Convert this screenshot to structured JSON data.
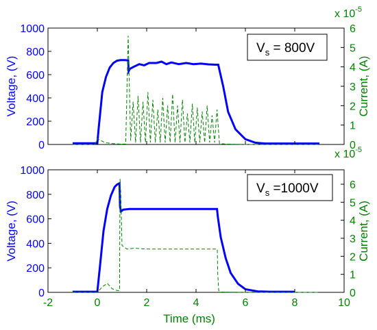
{
  "colors": {
    "voltage": "#0000ff",
    "current": "#008000",
    "axes": "#000000",
    "background": "#ffffff"
  },
  "chart_data": [
    {
      "type": "line",
      "label": "V_s = 800V",
      "label_parts": {
        "main": "V",
        "sub": "s",
        "rest": " = 800V"
      },
      "xlim": [
        -2,
        10
      ],
      "y_left": {
        "label": "Voltage, (V)",
        "lim": [
          0,
          1000
        ],
        "ticks": [
          "0",
          "200",
          "400",
          "600",
          "800",
          "1000"
        ]
      },
      "y_right": {
        "label": "Current, (A)",
        "lim": [
          0,
          6
        ],
        "ticks": [
          "0",
          "1",
          "2",
          "3",
          "4",
          "5",
          "6"
        ],
        "exponent_base": "x 10",
        "exponent": "-5"
      },
      "grid": false,
      "series": [
        {
          "axis": "left",
          "style": "solid",
          "color": "#0000ff",
          "x": [
            -1.0,
            -0.1,
            0.0,
            0.05,
            0.2,
            0.35,
            0.5,
            0.65,
            0.8,
            0.95,
            1.1,
            1.25,
            1.27,
            1.32,
            1.5,
            1.7,
            1.9,
            2.1,
            2.4,
            2.6,
            2.8,
            3.0,
            3.3,
            3.6,
            3.9,
            4.2,
            4.5,
            4.8,
            4.9,
            5.1,
            5.3,
            5.6,
            6.0,
            6.4,
            6.8,
            7.5,
            9.0
          ],
          "y": [
            10,
            10,
            10,
            130,
            450,
            580,
            660,
            700,
            720,
            725,
            725,
            722,
            630,
            650,
            670,
            690,
            680,
            700,
            700,
            712,
            690,
            705,
            690,
            700,
            690,
            695,
            688,
            685,
            685,
            500,
            280,
            130,
            45,
            15,
            8,
            8,
            8
          ]
        },
        {
          "axis": "right",
          "style": "dashed",
          "color": "#008000",
          "x": [
            -1.0,
            -0.1,
            0.0,
            0.3,
            0.6,
            0.9,
            1.15,
            1.25,
            1.35,
            1.45,
            1.55,
            1.65,
            1.75,
            1.85,
            1.95,
            2.05,
            2.15,
            2.25,
            2.35,
            2.45,
            2.55,
            2.65,
            2.75,
            2.85,
            2.95,
            3.05,
            3.15,
            3.25,
            3.35,
            3.45,
            3.55,
            3.65,
            3.75,
            3.85,
            3.95,
            4.05,
            4.15,
            4.25,
            4.35,
            4.45,
            4.55,
            4.65,
            4.75,
            4.85,
            4.95,
            5.2,
            6.0,
            9.0
          ],
          "y": [
            0,
            0,
            0.3,
            0.1,
            0.05,
            0.02,
            0.02,
            5.6,
            0.2,
            2.2,
            0.1,
            2.5,
            0.1,
            2.2,
            0.1,
            2.7,
            0.1,
            2.3,
            0.1,
            1.8,
            0.1,
            2.4,
            0.1,
            2.0,
            0.1,
            2.6,
            0.1,
            2.0,
            0.1,
            2.3,
            0.1,
            1.6,
            0.1,
            2.1,
            0.1,
            1.9,
            0.1,
            1.7,
            0.1,
            2.0,
            0.1,
            1.5,
            0.1,
            1.8,
            0.05,
            0.02,
            0.0,
            0.0
          ]
        }
      ]
    },
    {
      "type": "line",
      "label": "V_s = 1000V",
      "label_parts": {
        "main": "V",
        "sub": "s",
        "rest": " =1000V"
      },
      "xlim": [
        -2,
        10
      ],
      "xlabel": "Time (ms)",
      "x_ticks": [
        "-2",
        "0",
        "2",
        "4",
        "6",
        "8",
        "10"
      ],
      "y_left": {
        "label": "Voltage, (V)",
        "lim": [
          0,
          1000
        ],
        "ticks": [
          "0",
          "200",
          "400",
          "600",
          "800",
          "1000"
        ]
      },
      "y_right": {
        "label": "Current, (A)",
        "lim": [
          0,
          6.8
        ],
        "ticks": [
          "0",
          "1",
          "2",
          "3",
          "4",
          "5",
          "6"
        ],
        "exponent_base": "x 10",
        "exponent": "-5"
      },
      "grid": false,
      "series": [
        {
          "axis": "left",
          "style": "solid",
          "color": "#0000ff",
          "x": [
            -1.0,
            -0.1,
            0.0,
            0.1,
            0.25,
            0.4,
            0.55,
            0.7,
            0.8,
            0.9,
            0.92,
            0.96,
            1.05,
            1.3,
            2.0,
            3.0,
            4.0,
            4.85,
            4.88,
            5.0,
            5.2,
            5.4,
            5.7,
            6.0,
            6.5,
            7.0,
            8.0
          ],
          "y": [
            5,
            5,
            5,
            200,
            500,
            680,
            790,
            860,
            880,
            890,
            700,
            660,
            675,
            680,
            680,
            680,
            680,
            680,
            620,
            450,
            280,
            160,
            70,
            25,
            8,
            5,
            5
          ]
        },
        {
          "axis": "right",
          "style": "dashed",
          "color": "#008000",
          "x": [
            -1.0,
            0.0,
            0.2,
            0.4,
            0.6,
            0.8,
            0.9,
            0.92,
            0.95,
            1.0,
            1.2,
            1.5,
            2.0,
            3.0,
            4.0,
            4.8,
            4.86,
            4.88,
            4.92,
            5.0,
            6.0,
            9.0
          ],
          "y": [
            0,
            0,
            0.3,
            0.5,
            0.2,
            0.1,
            0.1,
            6.3,
            5.5,
            2.6,
            2.4,
            2.45,
            2.4,
            2.4,
            2.4,
            2.4,
            2.4,
            1.0,
            0.1,
            0.02,
            0,
            0
          ]
        }
      ]
    }
  ]
}
